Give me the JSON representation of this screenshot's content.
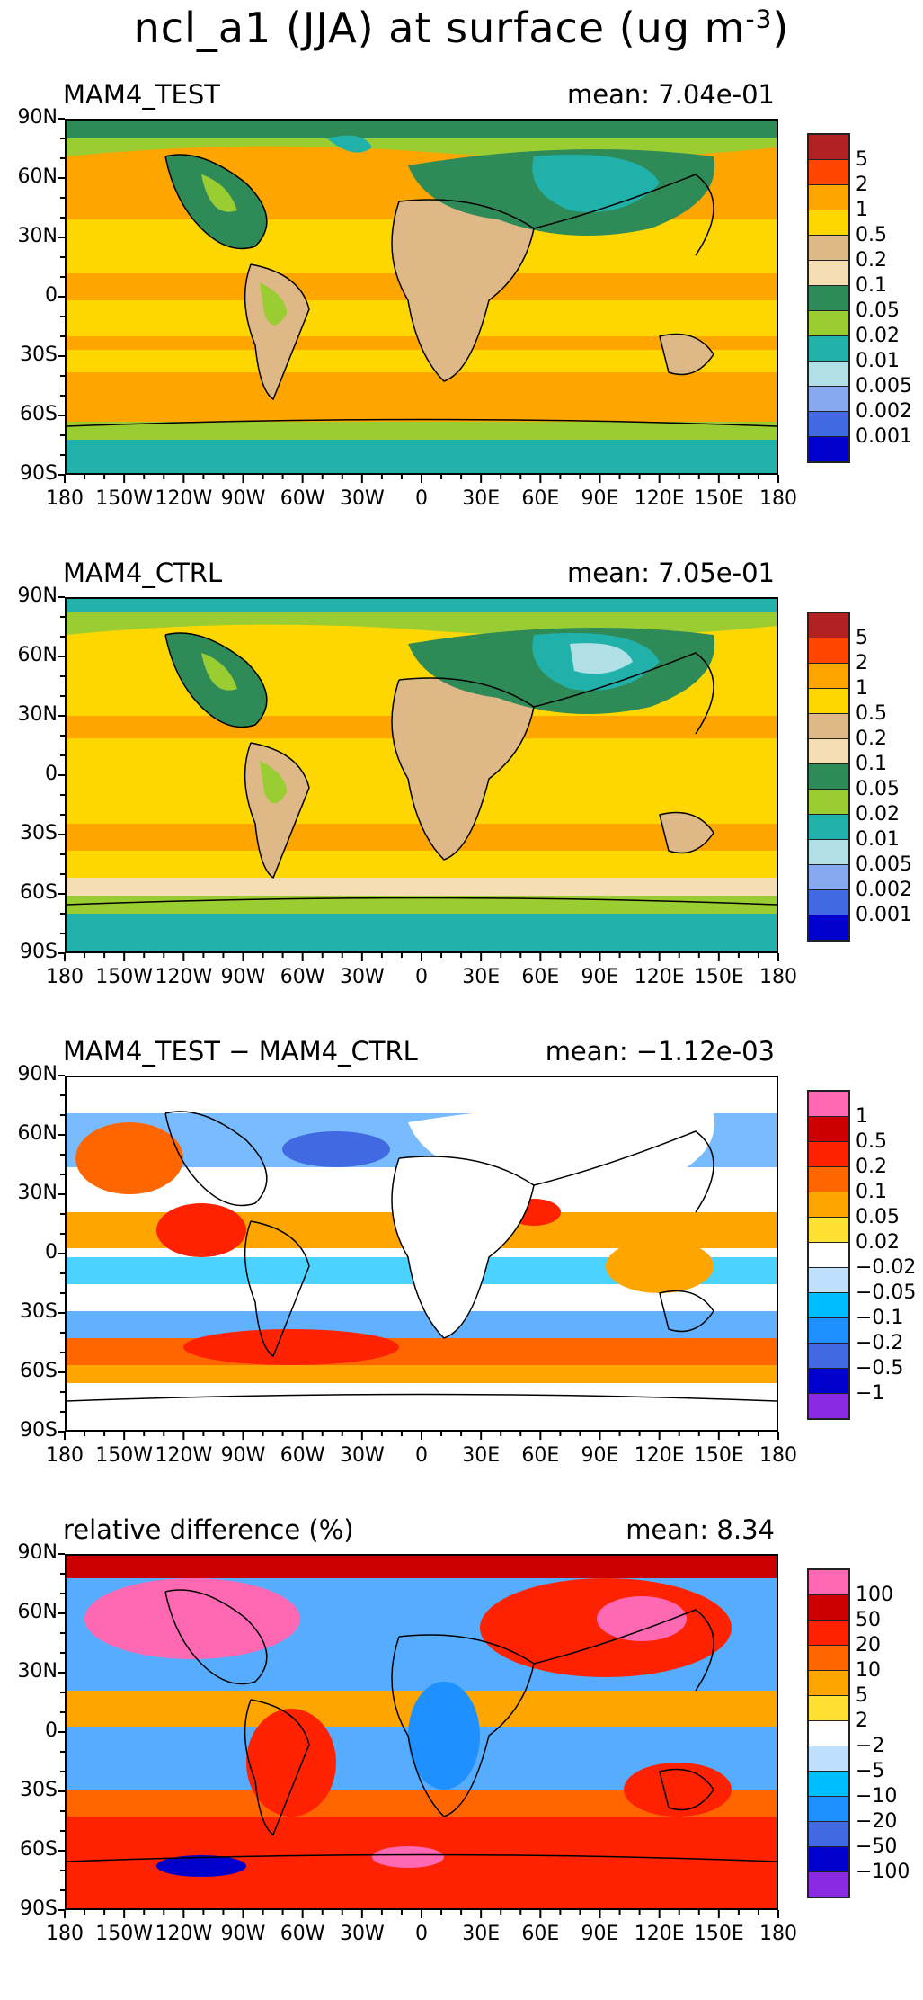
{
  "title_main": "ncl_a1 (JJA) at surface (ug m",
  "title_exp": "-3",
  "title_close": ")",
  "chart_data": [
    {
      "type": "heatmap",
      "title": "MAM4_TEST",
      "mean_text": "mean: 7.04e-01",
      "mean": 0.704,
      "xlabels": [
        "180",
        "150W",
        "120W",
        "90W",
        "60W",
        "30W",
        "0",
        "30E",
        "60E",
        "90E",
        "120E",
        "150E",
        "180"
      ],
      "ylabels": [
        "90N",
        "60N",
        "30N",
        "0",
        "30S",
        "60S",
        "90S"
      ],
      "colorbar": {
        "colors": [
          "#b22222",
          "#ff4500",
          "#ffa500",
          "#ffd700",
          "#deb887",
          "#f5deb3",
          "#2e8b57",
          "#9acd32",
          "#20b2aa",
          "#b0e0e6",
          "#87a9f0",
          "#4169e1",
          "#0000cd"
        ],
        "labels": [
          "5",
          "2",
          "1",
          "0.5",
          "0.2",
          "0.1",
          "0.05",
          "0.02",
          "0.01",
          "0.005",
          "0.002",
          "0.001"
        ]
      }
    },
    {
      "type": "heatmap",
      "title": "MAM4_CTRL",
      "mean_text": "mean: 7.05e-01",
      "mean": 0.705,
      "xlabels": [
        "180",
        "150W",
        "120W",
        "90W",
        "60W",
        "30W",
        "0",
        "30E",
        "60E",
        "90E",
        "120E",
        "150E",
        "180"
      ],
      "ylabels": [
        "90N",
        "60N",
        "30N",
        "0",
        "30S",
        "60S",
        "90S"
      ],
      "colorbar": {
        "colors": [
          "#b22222",
          "#ff4500",
          "#ffa500",
          "#ffd700",
          "#deb887",
          "#f5deb3",
          "#2e8b57",
          "#9acd32",
          "#20b2aa",
          "#b0e0e6",
          "#87a9f0",
          "#4169e1",
          "#0000cd"
        ],
        "labels": [
          "5",
          "2",
          "1",
          "0.5",
          "0.2",
          "0.1",
          "0.05",
          "0.02",
          "0.01",
          "0.005",
          "0.002",
          "0.001"
        ]
      }
    },
    {
      "type": "heatmap",
      "title": "MAM4_TEST − MAM4_CTRL",
      "mean_text": "mean: −1.12e-03",
      "mean": -0.00112,
      "xlabels": [
        "180",
        "150W",
        "120W",
        "90W",
        "60W",
        "30W",
        "0",
        "30E",
        "60E",
        "90E",
        "120E",
        "150E",
        "180"
      ],
      "ylabels": [
        "90N",
        "60N",
        "30N",
        "0",
        "30S",
        "60S",
        "90S"
      ],
      "colorbar": {
        "colors": [
          "#ff69b4",
          "#cc0000",
          "#ff2200",
          "#ff6600",
          "#ffa500",
          "#ffe033",
          "#ffffff",
          "#bfe0ff",
          "#00bfff",
          "#1e90ff",
          "#4169e1",
          "#0000cd",
          "#8a2be2"
        ],
        "labels": [
          "1",
          "0.5",
          "0.2",
          "0.1",
          "0.05",
          "0.02",
          "−0.02",
          "−0.05",
          "−0.1",
          "−0.2",
          "−0.5",
          "−1"
        ]
      }
    },
    {
      "type": "heatmap",
      "title": "relative difference (%)",
      "mean_text": "mean:  8.34",
      "mean": 8.34,
      "xlabels": [
        "180",
        "150W",
        "120W",
        "90W",
        "60W",
        "30W",
        "0",
        "30E",
        "60E",
        "90E",
        "120E",
        "150E",
        "180"
      ],
      "ylabels": [
        "90N",
        "60N",
        "30N",
        "0",
        "30S",
        "60S",
        "90S"
      ],
      "colorbar": {
        "colors": [
          "#ff69b4",
          "#cc0000",
          "#ff2200",
          "#ff6600",
          "#ffa500",
          "#ffe033",
          "#ffffff",
          "#bfe0ff",
          "#00bfff",
          "#1e90ff",
          "#4169e1",
          "#0000cd",
          "#8a2be2"
        ],
        "labels": [
          "100",
          "50",
          "20",
          "10",
          "5",
          "2",
          "−2",
          "−5",
          "−10",
          "−20",
          "−50",
          "−100"
        ]
      }
    }
  ]
}
